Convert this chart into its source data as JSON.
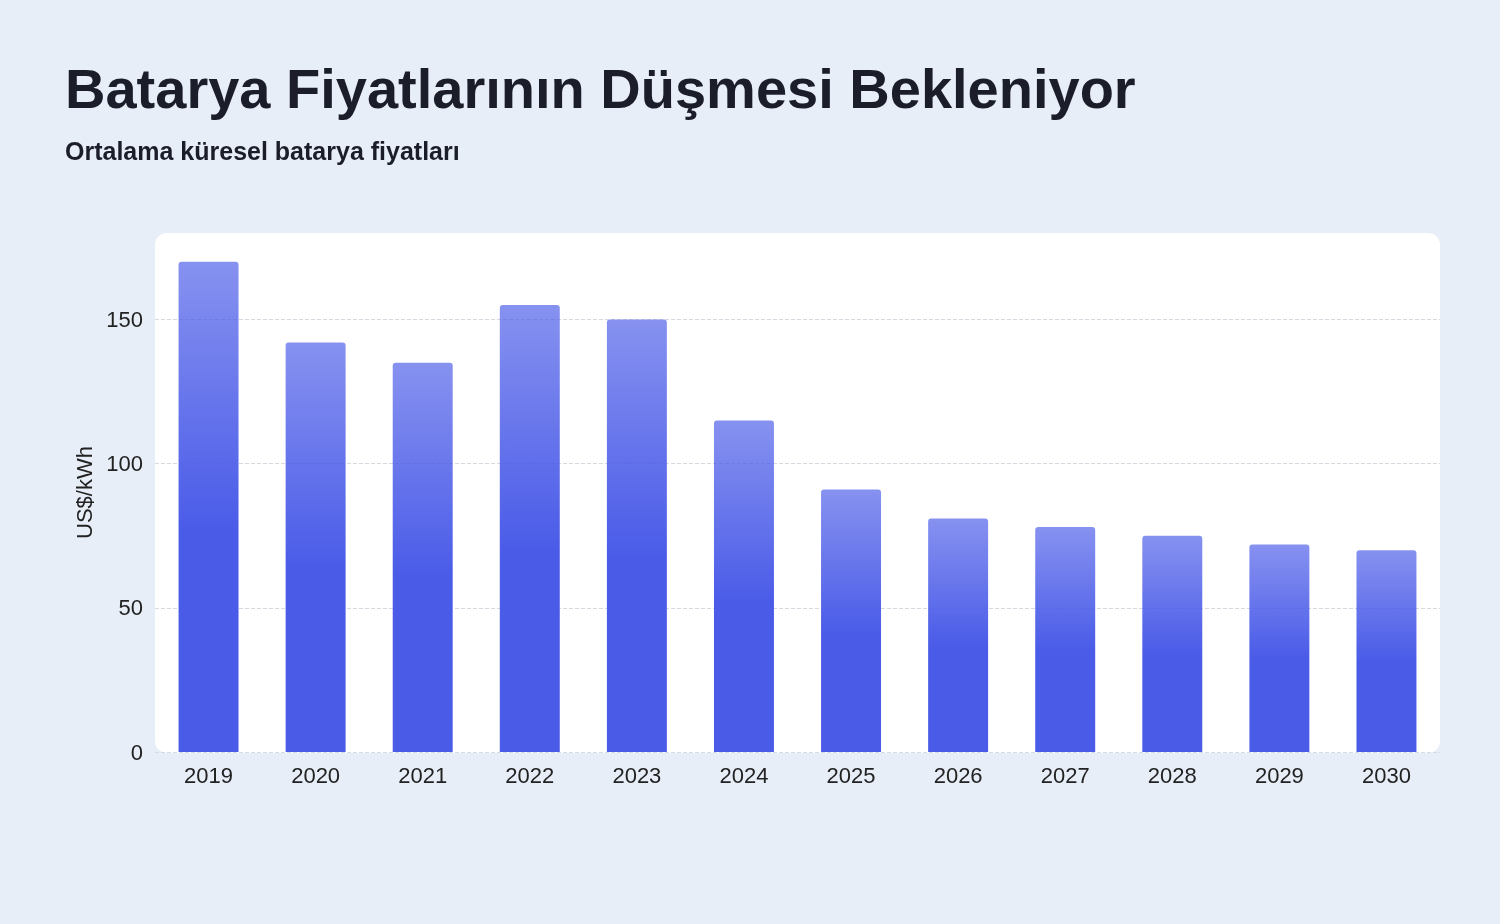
{
  "chart_data": {
    "type": "bar",
    "title": "Batarya Fiyatlarının Düşmesi Bekleniyor",
    "subtitle": "Ortalama küresel batarya fiyatları",
    "ylabel": "US$/kWh",
    "categories": [
      "2019",
      "2020",
      "2021",
      "2022",
      "2023",
      "2024",
      "2025",
      "2026",
      "2027",
      "2028",
      "2029",
      "2030"
    ],
    "values": [
      170,
      142,
      135,
      155,
      150,
      115,
      91,
      81,
      78,
      75,
      72,
      70
    ],
    "color": "#4a5be8",
    "ylim": [
      0,
      180
    ],
    "yticks": [
      0,
      50,
      100,
      150
    ],
    "grid": "y"
  }
}
